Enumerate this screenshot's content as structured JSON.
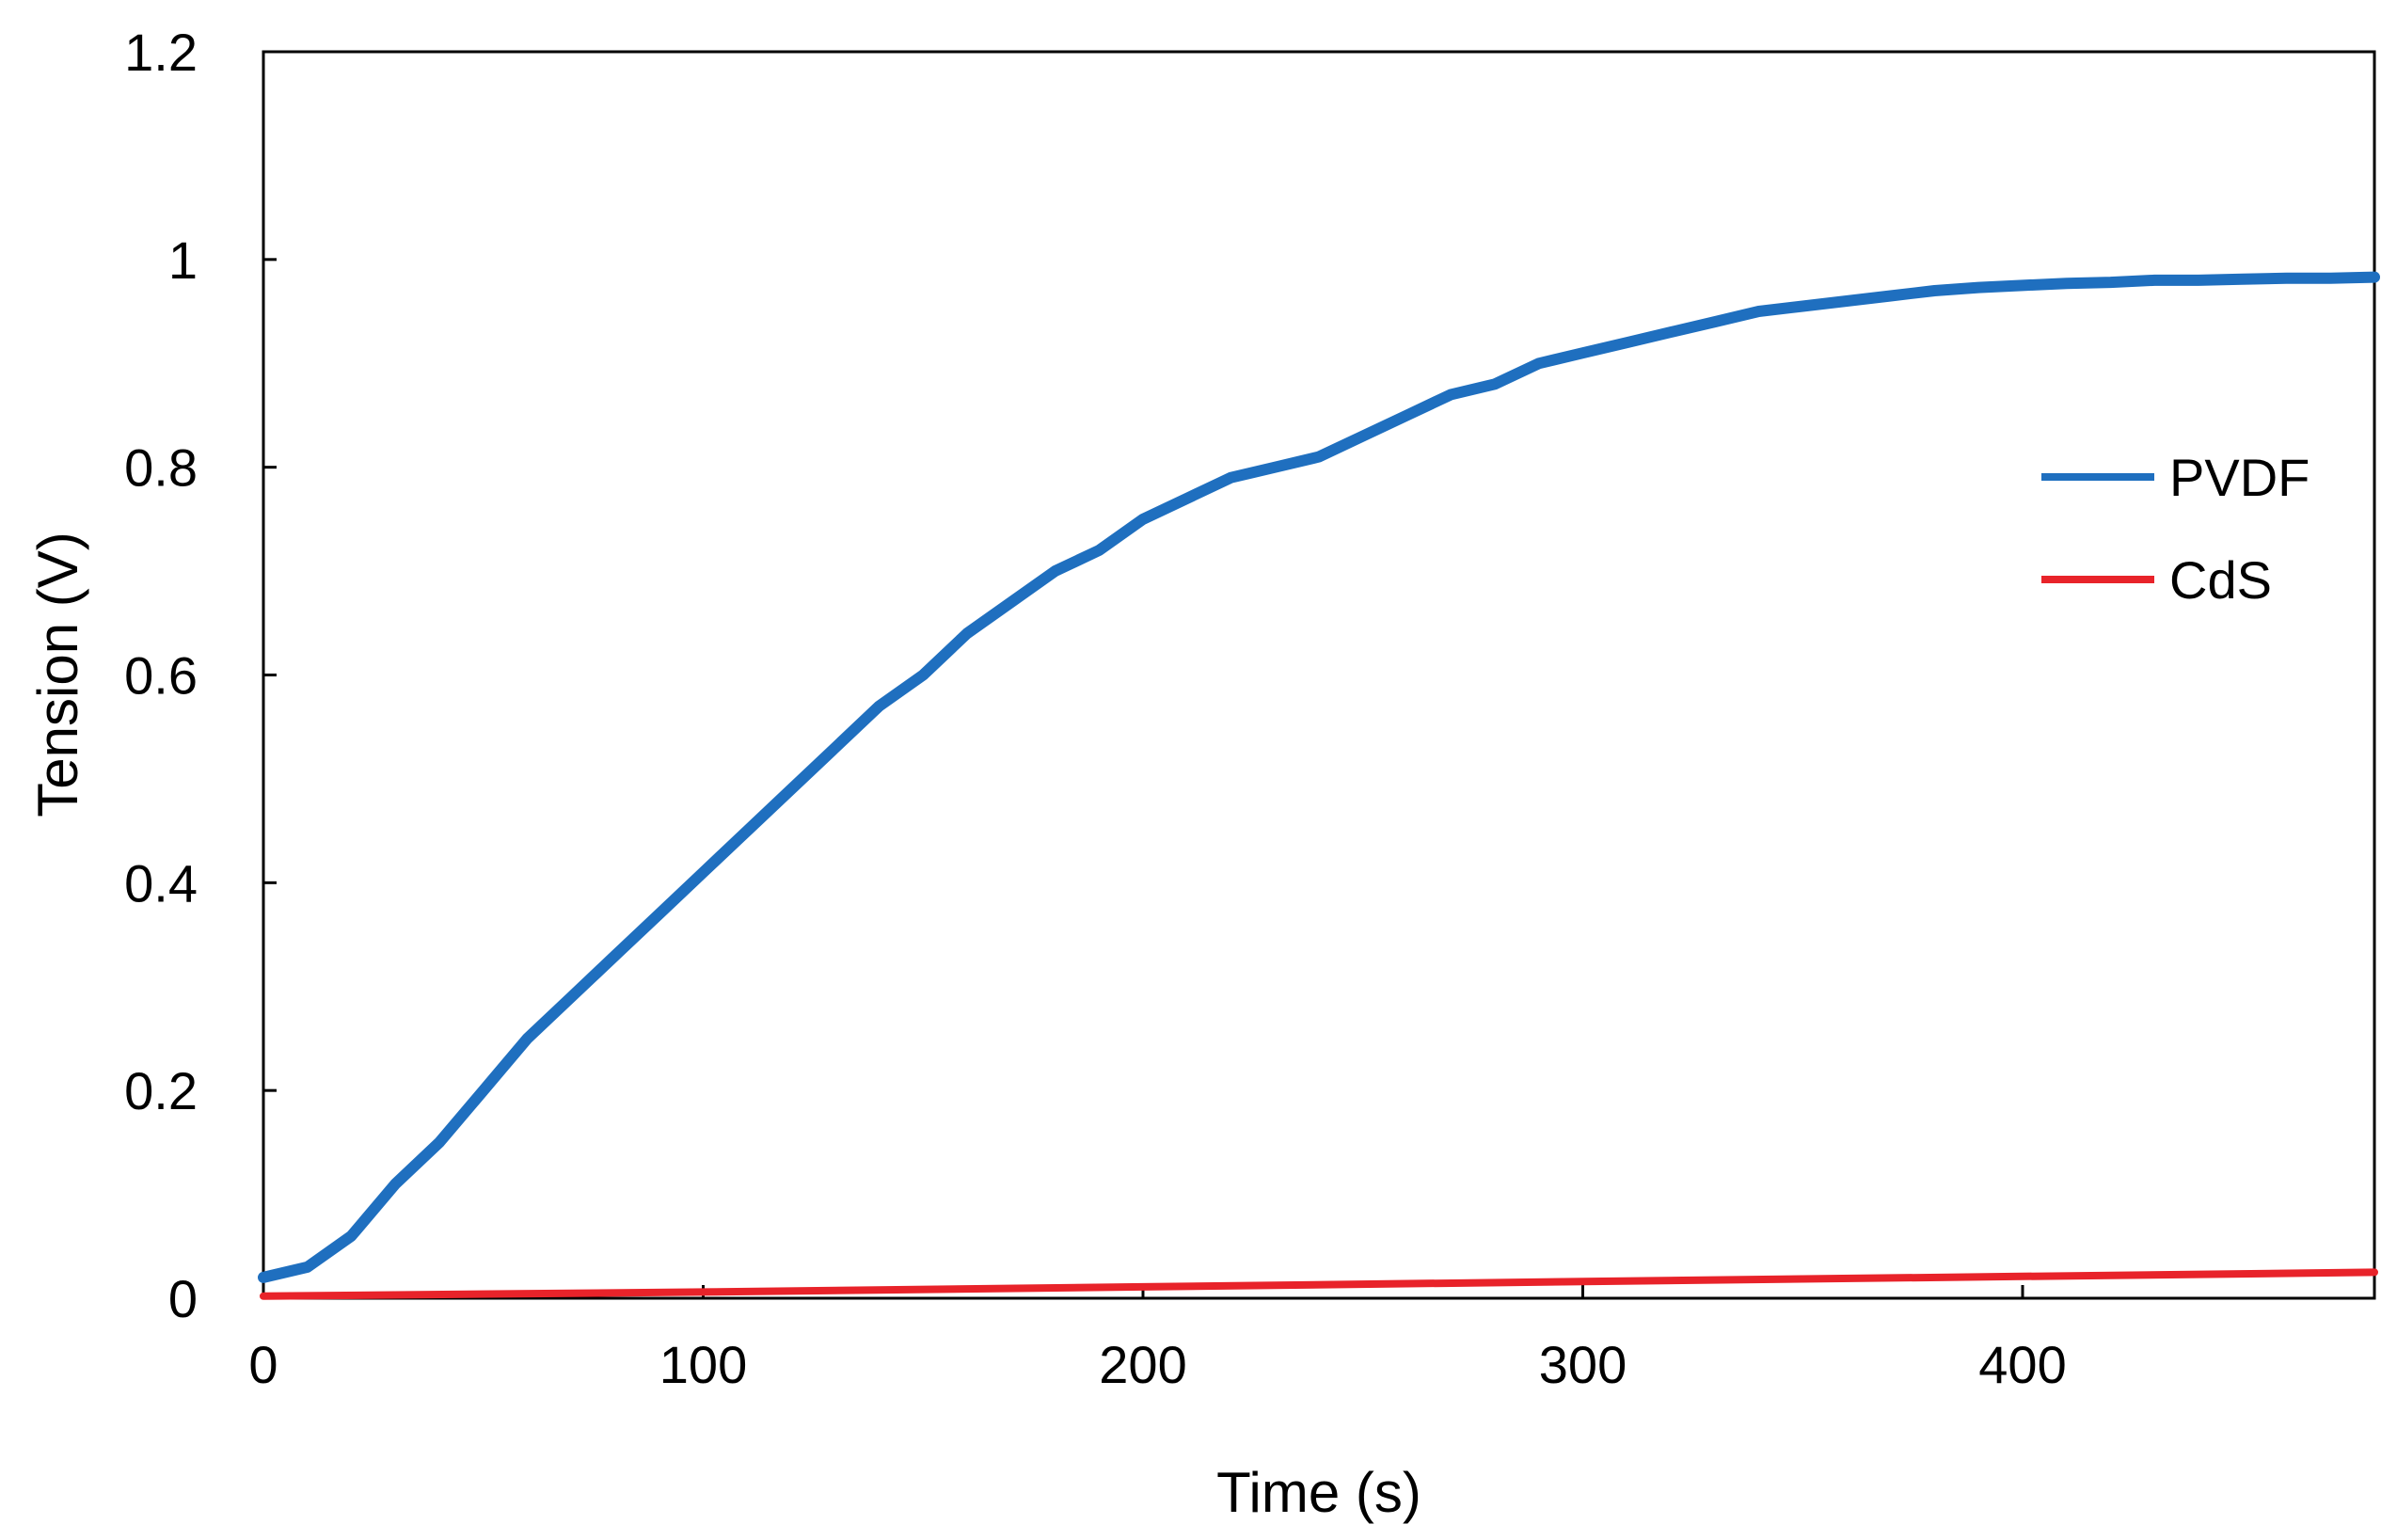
{
  "chart_data": {
    "type": "line",
    "title": "",
    "xlabel": "Time (s)",
    "ylabel": "Tension (V)",
    "xlim": [
      0,
      480
    ],
    "ylim": [
      0,
      1.2
    ],
    "x_ticks": [
      "0",
      "100",
      "200",
      "300",
      "400"
    ],
    "y_ticks": [
      "0",
      "0.2",
      "0.4",
      "0.6",
      "0.8",
      "1",
      "1.2"
    ],
    "grid": false,
    "legend_position": "right",
    "series": [
      {
        "name": "PVDF",
        "color": "#1F6FBF",
        "x": [
          0,
          10,
          20,
          30,
          40,
          50,
          60,
          70,
          80,
          90,
          100,
          110,
          120,
          130,
          140,
          150,
          160,
          170,
          180,
          190,
          200,
          210,
          220,
          230,
          240,
          250,
          260,
          270,
          280,
          290,
          300,
          310,
          320,
          330,
          340,
          350,
          360,
          370,
          380,
          390,
          400,
          410,
          420,
          430,
          440,
          450,
          460,
          470,
          480
        ],
        "y": [
          0.02,
          0.03,
          0.06,
          0.11,
          0.15,
          0.2,
          0.25,
          0.29,
          0.33,
          0.37,
          0.41,
          0.45,
          0.49,
          0.53,
          0.57,
          0.6,
          0.64,
          0.67,
          0.7,
          0.72,
          0.75,
          0.77,
          0.79,
          0.8,
          0.81,
          0.83,
          0.85,
          0.87,
          0.88,
          0.9,
          0.91,
          0.92,
          0.93,
          0.94,
          0.95,
          0.955,
          0.96,
          0.965,
          0.97,
          0.973,
          0.975,
          0.977,
          0.978,
          0.98,
          0.98,
          0.981,
          0.982,
          0.982,
          0.983
        ]
      },
      {
        "name": "CdS",
        "color": "#E8232A",
        "x": [
          0,
          100,
          200,
          300,
          400,
          480
        ],
        "y": [
          0.002,
          0.006,
          0.011,
          0.016,
          0.021,
          0.025
        ]
      }
    ]
  }
}
